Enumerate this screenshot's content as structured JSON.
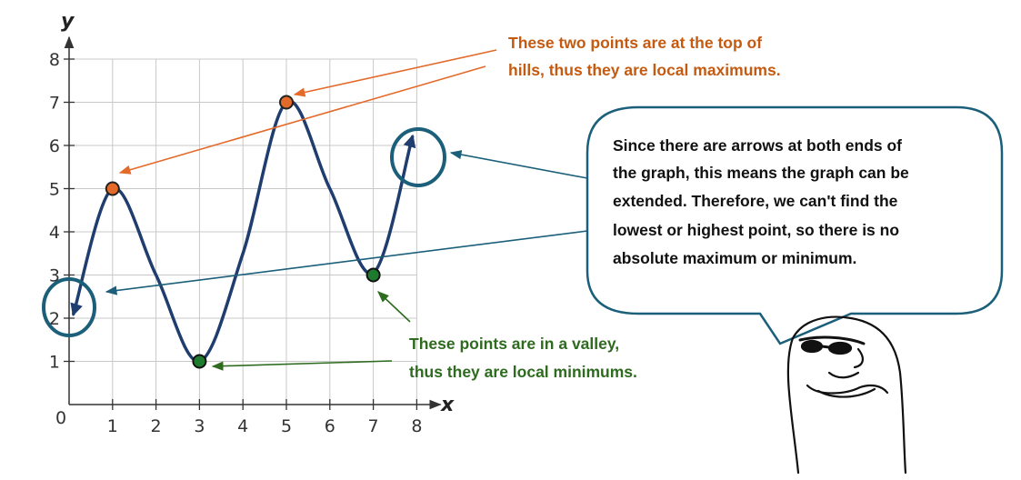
{
  "chart_data": {
    "type": "line",
    "xlabel": "x",
    "ylabel": "y",
    "xlim": [
      0,
      8
    ],
    "ylim": [
      0,
      8
    ],
    "origin_label": "0",
    "x_ticks": [
      "1",
      "2",
      "3",
      "4",
      "5",
      "6",
      "7",
      "8"
    ],
    "y_ticks": [
      "1",
      "2",
      "3",
      "4",
      "5",
      "6",
      "7",
      "8"
    ],
    "grid": true,
    "curve": {
      "x": [
        0.1,
        1,
        2,
        3,
        4,
        5,
        6,
        7,
        7.9
      ],
      "y": [
        2.1,
        5,
        3,
        1,
        3.5,
        7,
        5,
        3.05,
        6.2
      ],
      "arrow_both_ends": true
    },
    "local_maximums": [
      {
        "x": 1,
        "y": 5
      },
      {
        "x": 5,
        "y": 7
      }
    ],
    "local_minimums": [
      {
        "x": 3,
        "y": 1
      },
      {
        "x": 7,
        "y": 3
      }
    ]
  },
  "annotations": {
    "maximums": [
      "These two points are at the top of",
      "hills, thus they are local  maximums."
    ],
    "minimums": [
      "These points are in a valley,",
      "thus they are local minimums."
    ],
    "bubble": [
      "Since there are arrows at both ends of",
      "the graph, this means the graph can be",
      "extended. Therefore, we can't find the",
      "lowest or highest point, so there is no",
      "absolute maximum or minimum."
    ]
  },
  "colors": {
    "curve": "#1f3d6e",
    "max_point": "#e46a2a",
    "min_point": "#1e7b2e",
    "max_text": "#c55a11",
    "min_text": "#2e6b1f",
    "circle": "#1b5f7a",
    "grid": "#c8c8c8",
    "bubble_border": "#1b5f7a"
  },
  "icons": [
    "cool-face-character-icon"
  ]
}
